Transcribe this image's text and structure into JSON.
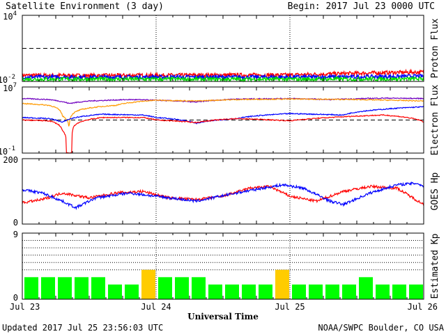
{
  "header": {
    "title": "Satellite Environment (3 day)",
    "begin": "Begin:  2017 Jul 23 0000 UTC"
  },
  "footer": {
    "updated": "Updated 2017 Jul 25 23:56:03 UTC",
    "credit": "NOAA/SWPC Boulder, CO USA",
    "xlabel": "Universal Time"
  },
  "chart_data": {
    "type": "line",
    "x_ticks": [
      "Jul 23",
      "Jul 24",
      "Jul 25",
      "Jul 26"
    ],
    "x_range_days": [
      0,
      3
    ],
    "panels": [
      {
        "id": "proton",
        "ylabel": "Proton Flux",
        "scale": "log",
        "ylim": [
          0.01,
          10000
        ],
        "ytick_labels": [
          {
            "base": "10",
            "exp": "4",
            "value": 10000
          },
          {
            "base": "10",
            "exp": "-2",
            "value": 0.01
          }
        ],
        "threshold": 10,
        "series": [
          {
            "color": "#ff0000",
            "key": [
              [
                0,
                0.036
              ],
              [
                0.5,
                0.034
              ],
              [
                1,
                0.036
              ],
              [
                1.5,
                0.038
              ],
              [
                2,
                0.038
              ],
              [
                2.2,
                0.045
              ],
              [
                2.5,
                0.055
              ],
              [
                2.8,
                0.065
              ],
              [
                3,
                0.07
              ]
            ]
          },
          {
            "color": "#0000ff",
            "key": [
              [
                0,
                0.025
              ],
              [
                1,
                0.025
              ],
              [
                2,
                0.025
              ],
              [
                2.5,
                0.026
              ],
              [
                3,
                0.03
              ]
            ]
          },
          {
            "color": "#00dd00",
            "key": [
              [
                0,
                0.016
              ],
              [
                1,
                0.016
              ],
              [
                2,
                0.016
              ],
              [
                3,
                0.017
              ]
            ]
          }
        ]
      },
      {
        "id": "electron",
        "ylabel": "Electron Flux",
        "scale": "log",
        "ylim": [
          0.1,
          10000000
        ],
        "ytick_labels": [
          {
            "base": "10",
            "exp": "7",
            "value": 10000000
          },
          {
            "base": "10",
            "exp": "-1",
            "value": 0.1
          }
        ],
        "threshold": 1000,
        "series": [
          {
            "color": "#7000c0",
            "key": [
              [
                0,
                400000
              ],
              [
                0.2,
                300000
              ],
              [
                0.35,
                100000
              ],
              [
                0.5,
                200000
              ],
              [
                0.8,
                300000
              ],
              [
                1,
                250000
              ],
              [
                1.3,
                150000
              ],
              [
                1.6,
                350000
              ],
              [
                2,
                400000
              ],
              [
                2.3,
                300000
              ],
              [
                2.7,
                450000
              ],
              [
                3,
                400000
              ]
            ]
          },
          {
            "color": "#ff9900",
            "key": [
              [
                0,
                100000
              ],
              [
                0.2,
                60000
              ],
              [
                0.3,
                3000
              ],
              [
                0.35,
                30
              ],
              [
                0.45,
                20000
              ],
              [
                0.7,
                60000
              ],
              [
                1,
                250000
              ],
              [
                1.3,
                200000
              ],
              [
                1.6,
                300000
              ],
              [
                2,
                350000
              ],
              [
                2.5,
                300000
              ],
              [
                3,
                200000
              ]
            ]
          },
          {
            "color": "#0000ff",
            "key": [
              [
                0,
                2000
              ],
              [
                0.2,
                1500
              ],
              [
                0.3,
                500
              ],
              [
                0.4,
                2000
              ],
              [
                0.6,
                5000
              ],
              [
                0.9,
                4000
              ],
              [
                1,
                2000
              ],
              [
                1.3,
                400
              ],
              [
                1.6,
                1500
              ],
              [
                2,
                6000
              ],
              [
                2.4,
                4000
              ],
              [
                2.7,
                20000
              ],
              [
                3,
                40000
              ]
            ]
          },
          {
            "color": "#ff0000",
            "key": [
              [
                0,
                1000
              ],
              [
                0.2,
                800
              ],
              [
                0.3,
                50
              ],
              [
                0.33,
                0.1
              ],
              [
                0.37,
                0.1
              ],
              [
                0.4,
                300
              ],
              [
                0.6,
                2000
              ],
              [
                0.9,
                2000
              ],
              [
                1,
                1000
              ],
              [
                1.3,
                500
              ],
              [
                1.6,
                1500
              ],
              [
                2,
                800
              ],
              [
                2.3,
                2000
              ],
              [
                2.7,
                4000
              ],
              [
                3,
                600
              ]
            ]
          }
        ]
      },
      {
        "id": "goes",
        "ylabel": "GOES Hp",
        "scale": "linear",
        "ylim": [
          0,
          200
        ],
        "ytick_labels": [
          {
            "base": "200",
            "value": 200
          },
          {
            "base": "0",
            "value": 0
          }
        ],
        "series": [
          {
            "color": "#ff0000",
            "key": [
              [
                0,
                65
              ],
              [
                0.15,
                75
              ],
              [
                0.3,
                95
              ],
              [
                0.5,
                80
              ],
              [
                0.7,
                95
              ],
              [
                0.9,
                100
              ],
              [
                1.1,
                80
              ],
              [
                1.3,
                75
              ],
              [
                1.5,
                85
              ],
              [
                1.7,
                110
              ],
              [
                1.85,
                115
              ],
              [
                2,
                85
              ],
              [
                2.2,
                70
              ],
              [
                2.4,
                100
              ],
              [
                2.6,
                115
              ],
              [
                2.8,
                110
              ],
              [
                3,
                60
              ]
            ]
          },
          {
            "color": "#0000ff",
            "key": [
              [
                0,
                105
              ],
              [
                0.15,
                95
              ],
              [
                0.3,
                70
              ],
              [
                0.4,
                50
              ],
              [
                0.55,
                80
              ],
              [
                0.8,
                95
              ],
              [
                1,
                85
              ],
              [
                1.3,
                70
              ],
              [
                1.6,
                95
              ],
              [
                1.8,
                110
              ],
              [
                1.95,
                120
              ],
              [
                2.1,
                110
              ],
              [
                2.3,
                70
              ],
              [
                2.4,
                60
              ],
              [
                2.6,
                95
              ],
              [
                2.8,
                120
              ],
              [
                2.95,
                125
              ],
              [
                3,
                115
              ]
            ]
          }
        ]
      },
      {
        "id": "kp",
        "ylabel": "Estimated Kp",
        "type": "bar",
        "scale": "linear",
        "ylim": [
          0,
          9
        ],
        "ytick_labels": [
          {
            "base": "9",
            "value": 9
          },
          {
            "base": "0",
            "value": 0
          }
        ],
        "dotted_lines": [
          4,
          5,
          6,
          7,
          8,
          9
        ],
        "colors": {
          "low": "#00ff00",
          "active": "#ffcc00"
        },
        "active_threshold": 4,
        "values": [
          3,
          3,
          3,
          3,
          3,
          2,
          2,
          4,
          3,
          3,
          3,
          2,
          2,
          2,
          2,
          4,
          2,
          2,
          2,
          2,
          3,
          2,
          2,
          2
        ]
      }
    ]
  }
}
